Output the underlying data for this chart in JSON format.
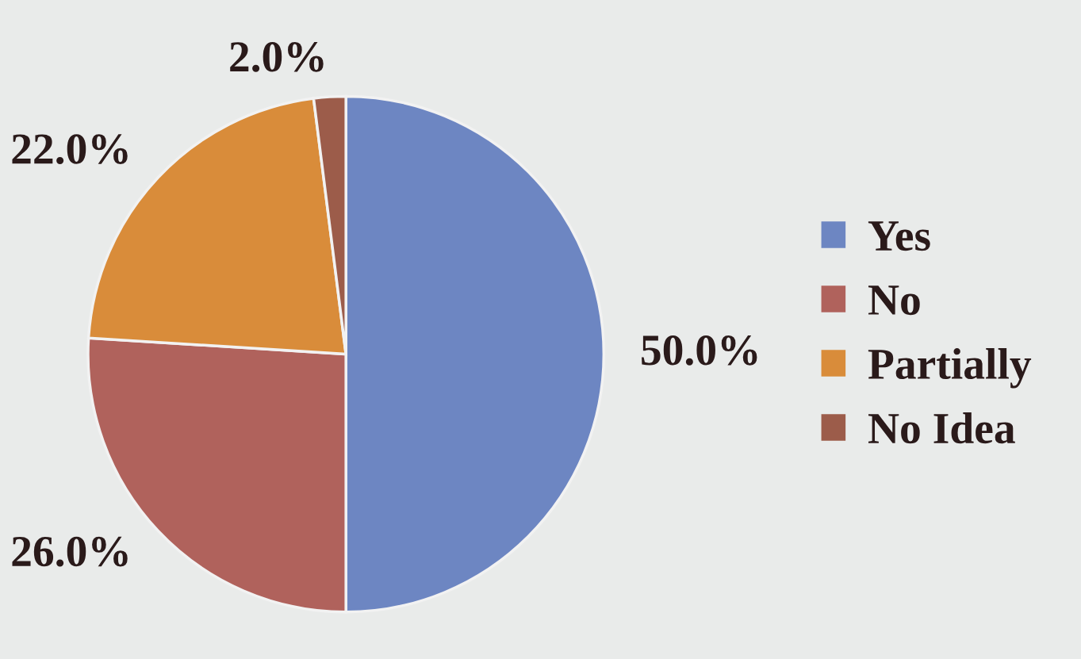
{
  "chart_data": {
    "type": "pie",
    "categories": [
      "Yes",
      "No",
      "Partially",
      "No Idea"
    ],
    "values": [
      50,
      26,
      22,
      2
    ],
    "colors": [
      "#6d86c2",
      "#b0625c",
      "#d98c3a",
      "#9c5c4a"
    ],
    "value_labels": [
      "50.0%",
      "26.0%",
      "22.0%",
      "2.0%"
    ],
    "legend": "right"
  }
}
